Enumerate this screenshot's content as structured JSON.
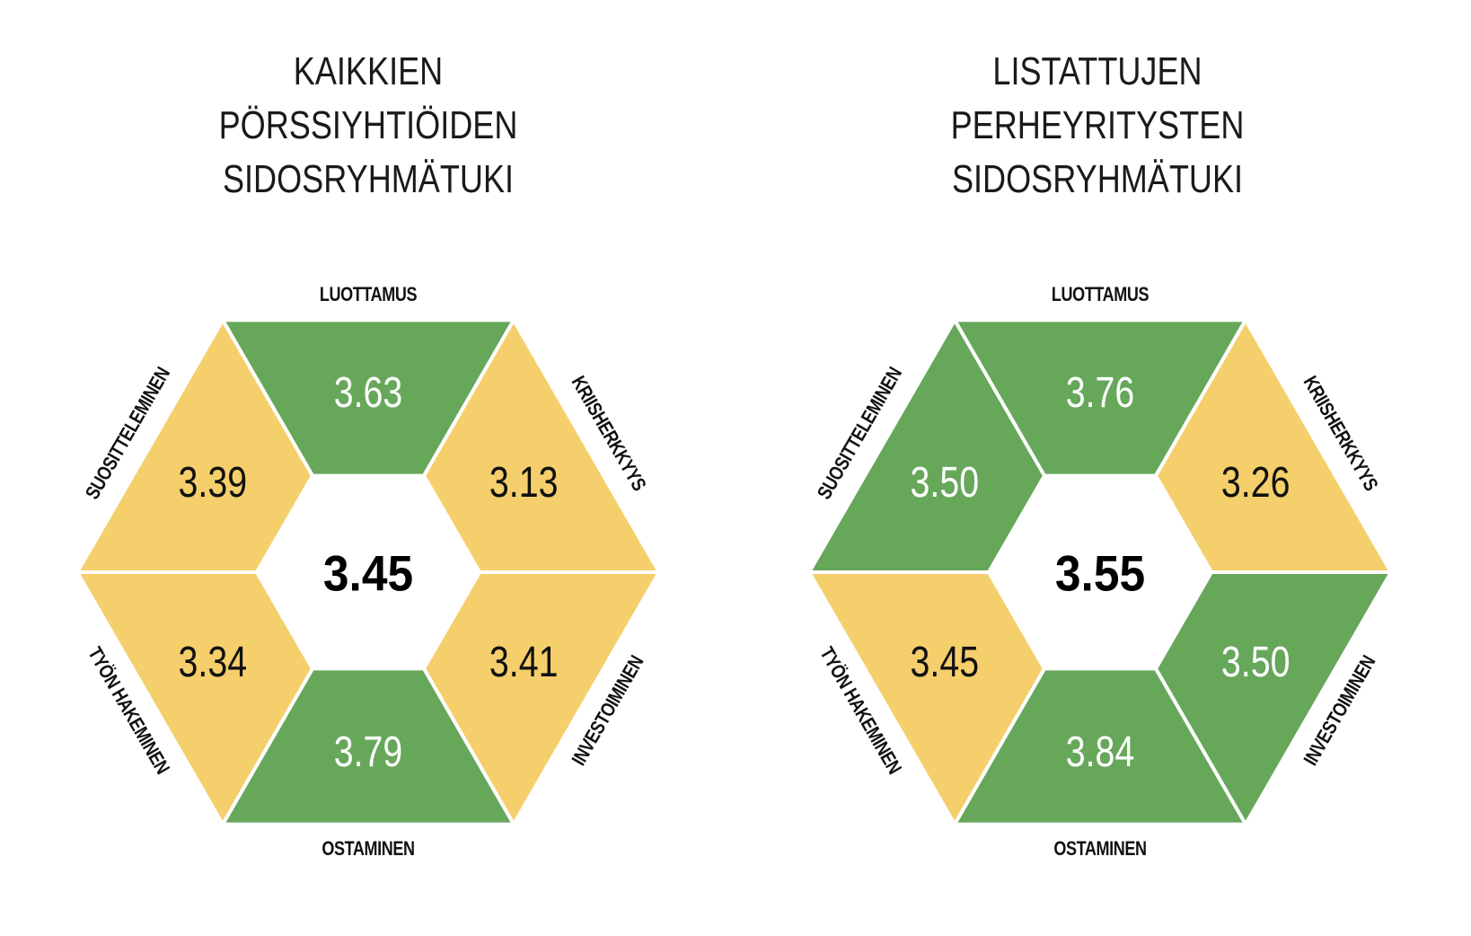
{
  "colors": {
    "high": "#66a75a",
    "low": "#f5cf6b",
    "text_on_high": "#ffffff",
    "text_on_low": "#111111",
    "label": "#111111"
  },
  "panels": [
    {
      "title_lines": [
        "KAIKKIEN",
        "PÖRSSIYHTIÖIDEN",
        "SIDOSRYHMÄTUKI"
      ],
      "center": "3.45",
      "segments": [
        {
          "key": "top",
          "label": "LUOTTAMUS",
          "value": "3.63",
          "level": "high"
        },
        {
          "key": "upper-right",
          "label": "KRIISHERKKYYS",
          "value": "3.13",
          "level": "low"
        },
        {
          "key": "lower-right",
          "label": "INVESTOIMINEN",
          "value": "3.41",
          "level": "low"
        },
        {
          "key": "bottom",
          "label": "OSTAMINEN",
          "value": "3.79",
          "level": "high"
        },
        {
          "key": "lower-left",
          "label": "TYÖN HAKEMINEN",
          "value": "3.34",
          "level": "low"
        },
        {
          "key": "upper-left",
          "label": "SUOSITTELEMINEN",
          "value": "3.39",
          "level": "low"
        }
      ]
    },
    {
      "title_lines": [
        "LISTATTUJEN",
        "PERHEYRITYSTEN",
        "SIDOSRYHMÄTUKI"
      ],
      "center": "3.55",
      "segments": [
        {
          "key": "top",
          "label": "LUOTTAMUS",
          "value": "3.76",
          "level": "high"
        },
        {
          "key": "upper-right",
          "label": "KRIISHERKKYYS",
          "value": "3.26",
          "level": "low"
        },
        {
          "key": "lower-right",
          "label": "INVESTOIMINEN",
          "value": "3.50",
          "level": "high"
        },
        {
          "key": "bottom",
          "label": "OSTAMINEN",
          "value": "3.84",
          "level": "high"
        },
        {
          "key": "lower-left",
          "label": "TYÖN HAKEMINEN",
          "value": "3.45",
          "level": "low"
        },
        {
          "key": "upper-left",
          "label": "SUOSITTELEMINEN",
          "value": "3.50",
          "level": "high"
        }
      ]
    }
  ]
}
